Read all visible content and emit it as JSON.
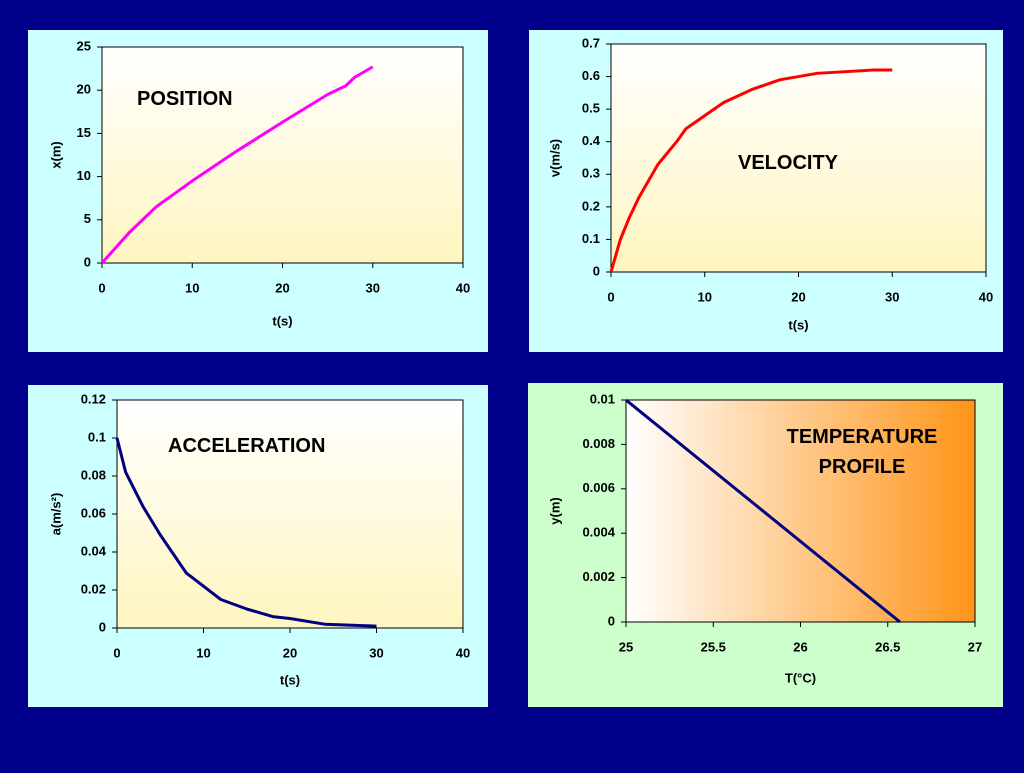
{
  "chart_data": [
    {
      "type": "line",
      "annotation": "POSITION",
      "x_label": "t(s)",
      "y_label": "x(m)",
      "x": [
        0,
        3,
        6,
        10,
        15,
        20,
        25,
        27,
        28,
        30
      ],
      "values": [
        0,
        3.5,
        6.5,
        9.5,
        13,
        16.3,
        19.5,
        20.5,
        21.5,
        22.7
      ],
      "color": "#ff00ff",
      "xlim": [
        0,
        40
      ],
      "xticks": [
        0,
        10,
        20,
        30,
        40
      ],
      "ylim": [
        0,
        25
      ],
      "yticks": [
        0,
        5,
        10,
        15,
        20,
        25
      ],
      "background": "#ccffff",
      "plot_gradient": {
        "from": "#ffffff",
        "to": "#fff5c0",
        "direction": "vertical"
      }
    },
    {
      "type": "line",
      "annotation": "VELOCITY",
      "x_label": "t(s)",
      "y_label": "v(m/s)",
      "x": [
        0,
        1,
        2,
        3,
        4,
        5,
        7,
        8,
        10,
        12,
        15,
        18,
        20,
        22,
        25,
        28,
        30
      ],
      "values": [
        0,
        0.1,
        0.17,
        0.23,
        0.28,
        0.33,
        0.4,
        0.44,
        0.48,
        0.52,
        0.56,
        0.59,
        0.6,
        0.61,
        0.615,
        0.62,
        0.62
      ],
      "color": "#ff0000",
      "xlim": [
        0,
        40
      ],
      "xticks": [
        0,
        10,
        20,
        30,
        40
      ],
      "ylim": [
        0,
        0.7
      ],
      "yticks": [
        0,
        0.1,
        0.2,
        0.3,
        0.4,
        0.5,
        0.6,
        0.7
      ],
      "background": "#ccffff",
      "plot_gradient": {
        "from": "#ffffff",
        "to": "#fff5c0",
        "direction": "vertical"
      }
    },
    {
      "type": "line",
      "annotation": "ACCELERATION",
      "x_label": "t(s)",
      "y_label": "a(m/s²)",
      "x": [
        0,
        1,
        2,
        3,
        5,
        8,
        10,
        12,
        15,
        18,
        20,
        24,
        30
      ],
      "values": [
        0.1,
        0.082,
        0.073,
        0.064,
        0.049,
        0.029,
        0.022,
        0.015,
        0.01,
        0.006,
        0.005,
        0.002,
        0.001
      ],
      "color": "#000080",
      "xlim": [
        0,
        40
      ],
      "xticks": [
        0,
        10,
        20,
        30,
        40
      ],
      "ylim": [
        0,
        0.12
      ],
      "yticks": [
        0,
        0.02,
        0.04,
        0.06,
        0.08,
        0.1,
        0.12
      ],
      "background": "#ccffff",
      "plot_gradient": {
        "from": "#ffffff",
        "to": "#fff5c0",
        "direction": "vertical"
      }
    },
    {
      "type": "line",
      "annotation": "TEMPERATURE PROFILE",
      "x_label": "T(°C)",
      "y_label": "y(m)",
      "x": [
        25,
        26.57
      ],
      "values": [
        0.01,
        0
      ],
      "color": "#000080",
      "xlim": [
        25,
        27
      ],
      "xticks": [
        25,
        25.5,
        26,
        26.5,
        27
      ],
      "ylim": [
        0,
        0.01
      ],
      "yticks": [
        0,
        0.002,
        0.004,
        0.006,
        0.008,
        0.01
      ],
      "background": "#ccffcc",
      "plot_gradient": {
        "from": "#ffffff",
        "to": "#ff9418",
        "direction": "horizontal"
      }
    }
  ]
}
